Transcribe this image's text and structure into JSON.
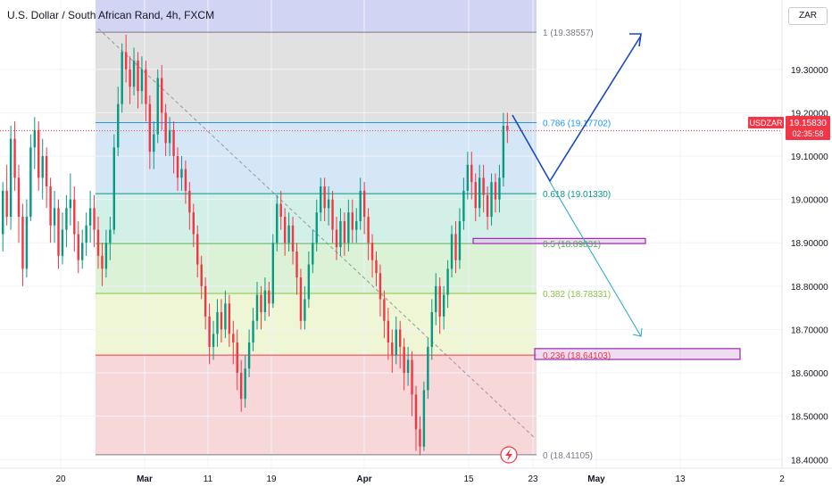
{
  "header": {
    "title": "U.S. Dollar / South African Rand, 4h, FXCM",
    "currency": "ZAR"
  },
  "price_tag": {
    "symbol": "USDZAR",
    "price": "19.15830",
    "countdown": "02:35:58",
    "color": "#f23645"
  },
  "chart_data": {
    "type": "candlestick",
    "symbol": "USDZAR",
    "interval": "4h",
    "source": "FXCM",
    "ylim": [
      18.38,
      19.46
    ],
    "y_ticks": [
      18.4,
      18.5,
      18.6,
      18.7,
      18.8,
      18.9,
      19.0,
      19.1,
      19.2,
      19.3
    ],
    "y_tick_labels": [
      "18.40000",
      "18.50000",
      "18.60000",
      "18.70000",
      "18.80000",
      "18.90000",
      "19.00000",
      "19.10000",
      "19.20000",
      "19.30000"
    ],
    "x_labels": [
      "20",
      "Mar",
      "11",
      "19",
      "Apr",
      "15",
      "23",
      "May",
      "13",
      "2"
    ],
    "last_price": 19.1583,
    "fibonacci": {
      "levels": [
        {
          "ratio": "1",
          "value": 19.38557,
          "label": "1 (19.38557)",
          "color": "#787b86",
          "fill": "#e1e1e1"
        },
        {
          "ratio": "0.786",
          "value": 19.17702,
          "label": "0.786 (19.17702)",
          "color": "#2196f3",
          "fill": "#d5e7f7"
        },
        {
          "ratio": "0.618",
          "value": 19.0133,
          "label": "0.618 (19.01330)",
          "color": "#089981",
          "fill": "#d2f0e8"
        },
        {
          "ratio": "0.5",
          "value": 18.89831,
          "label": "0.5 (18.89831)",
          "color": "#4caf50",
          "fill": "#dcf2d6"
        },
        {
          "ratio": "0.382",
          "value": 18.78331,
          "label": "0.382 (18.78331)",
          "color": "#8bc34a",
          "fill": "#eef6d6"
        },
        {
          "ratio": "0.236",
          "value": 18.64103,
          "label": "0.236 (18.64103)",
          "color": "#f23645",
          "fill": "#f8d7d9"
        },
        {
          "ratio": "0",
          "value": 18.41105,
          "label": "0 (18.41105)",
          "color": "#787b86",
          "fill": "#f8d7d9"
        }
      ],
      "top_band_color": "#d1d4f2"
    },
    "zones": [
      {
        "name": "resistance-zone-0.5",
        "from": 18.8983,
        "to": 18.91
      },
      {
        "name": "support-zone-0.236",
        "from": 18.631,
        "to": 18.656
      }
    ],
    "projections": [
      {
        "name": "bullish-path",
        "color": "#1848c0"
      },
      {
        "name": "bearish-path",
        "color": "#26a6c6"
      }
    ],
    "candles": [
      [
        18.92,
        19.02,
        18.88,
        19.04
      ],
      [
        19.02,
        18.96,
        18.94,
        19.08
      ],
      [
        18.96,
        19.14,
        18.93,
        19.17
      ],
      [
        19.14,
        19.05,
        19.02,
        19.18
      ],
      [
        19.05,
        18.96,
        18.9,
        19.08
      ],
      [
        18.96,
        18.84,
        18.8,
        18.99
      ],
      [
        18.84,
        18.96,
        18.82,
        19.0
      ],
      [
        18.96,
        19.12,
        18.95,
        19.15
      ],
      [
        19.12,
        19.16,
        19.07,
        19.19
      ],
      [
        19.16,
        19.05,
        19.02,
        19.18
      ],
      [
        19.05,
        19.1,
        19.0,
        19.14
      ],
      [
        19.1,
        19.03,
        18.98,
        19.12
      ],
      [
        19.03,
        18.94,
        18.9,
        19.05
      ],
      [
        18.94,
        18.98,
        18.9,
        19.02
      ],
      [
        18.98,
        18.87,
        18.84,
        19.0
      ],
      [
        18.87,
        18.93,
        18.85,
        18.97
      ],
      [
        18.93,
        18.98,
        18.89,
        19.01
      ],
      [
        18.98,
        19.0,
        18.94,
        19.06
      ],
      [
        19.0,
        18.92,
        18.88,
        19.03
      ],
      [
        18.92,
        18.86,
        18.83,
        18.95
      ],
      [
        18.86,
        18.9,
        18.84,
        18.93
      ],
      [
        18.9,
        18.94,
        18.87,
        18.97
      ],
      [
        18.94,
        18.98,
        18.9,
        19.02
      ],
      [
        18.98,
        18.93,
        18.89,
        19.01
      ],
      [
        18.93,
        18.87,
        18.84,
        18.96
      ],
      [
        18.87,
        18.84,
        18.8,
        18.9
      ],
      [
        18.84,
        18.9,
        18.82,
        18.93
      ],
      [
        18.9,
        18.93,
        18.86,
        18.96
      ],
      [
        18.93,
        19.12,
        18.92,
        19.15
      ],
      [
        19.12,
        19.22,
        19.1,
        19.26
      ],
      [
        19.22,
        19.34,
        19.2,
        19.36
      ],
      [
        19.34,
        19.3,
        19.27,
        19.38
      ],
      [
        19.3,
        19.26,
        19.22,
        19.33
      ],
      [
        19.26,
        19.32,
        19.24,
        19.35
      ],
      [
        19.32,
        19.25,
        19.21,
        19.34
      ],
      [
        19.25,
        19.3,
        19.22,
        19.33
      ],
      [
        19.3,
        19.22,
        19.18,
        19.32
      ],
      [
        19.22,
        19.11,
        19.07,
        19.24
      ],
      [
        19.11,
        19.15,
        19.07,
        19.18
      ],
      [
        19.15,
        19.28,
        19.13,
        19.3
      ],
      [
        19.28,
        19.2,
        19.16,
        19.31
      ],
      [
        19.2,
        19.13,
        19.1,
        19.22
      ],
      [
        19.13,
        19.16,
        19.1,
        19.19
      ],
      [
        19.16,
        19.1,
        19.06,
        19.18
      ],
      [
        19.1,
        19.05,
        19.02,
        19.12
      ],
      [
        19.05,
        19.07,
        19.02,
        19.1
      ],
      [
        19.07,
        19.02,
        18.99,
        19.09
      ],
      [
        19.02,
        18.97,
        18.93,
        19.04
      ],
      [
        18.97,
        18.92,
        18.89,
        18.99
      ],
      [
        18.92,
        18.85,
        18.82,
        18.94
      ],
      [
        18.85,
        18.8,
        18.77,
        18.87
      ],
      [
        18.8,
        18.73,
        18.7,
        18.82
      ],
      [
        18.73,
        18.66,
        18.62,
        18.76
      ],
      [
        18.66,
        18.69,
        18.63,
        18.72
      ],
      [
        18.69,
        18.74,
        18.66,
        18.77
      ],
      [
        18.74,
        18.7,
        18.67,
        18.77
      ],
      [
        18.7,
        18.76,
        18.68,
        18.79
      ],
      [
        18.76,
        18.69,
        18.66,
        18.78
      ],
      [
        18.69,
        18.67,
        18.62,
        18.72
      ],
      [
        18.67,
        18.6,
        18.56,
        18.7
      ],
      [
        18.6,
        18.54,
        18.51,
        18.63
      ],
      [
        18.54,
        18.61,
        18.52,
        18.64
      ],
      [
        18.61,
        18.67,
        18.59,
        18.7
      ],
      [
        18.67,
        18.72,
        18.65,
        18.75
      ],
      [
        18.72,
        18.78,
        18.7,
        18.81
      ],
      [
        18.78,
        18.74,
        18.7,
        18.8
      ],
      [
        18.74,
        18.79,
        18.72,
        18.82
      ],
      [
        18.79,
        18.76,
        18.73,
        18.81
      ],
      [
        18.76,
        18.9,
        18.75,
        18.92
      ],
      [
        18.9,
        18.99,
        18.88,
        19.01
      ],
      [
        18.99,
        18.96,
        18.93,
        19.02
      ],
      [
        18.96,
        18.9,
        18.87,
        18.98
      ],
      [
        18.9,
        18.94,
        18.88,
        18.97
      ],
      [
        18.94,
        18.88,
        18.85,
        18.96
      ],
      [
        18.88,
        18.82,
        18.78,
        18.9
      ],
      [
        18.82,
        18.72,
        18.7,
        18.84
      ],
      [
        18.72,
        18.77,
        18.7,
        18.8
      ],
      [
        18.77,
        18.85,
        18.75,
        18.88
      ],
      [
        18.85,
        18.9,
        18.83,
        18.93
      ],
      [
        18.9,
        18.97,
        18.88,
        19.0
      ],
      [
        18.97,
        19.03,
        18.95,
        19.05
      ],
      [
        19.03,
        18.98,
        18.95,
        19.05
      ],
      [
        18.98,
        19.0,
        18.94,
        19.03
      ],
      [
        19.0,
        18.93,
        18.9,
        19.02
      ],
      [
        18.93,
        18.89,
        18.86,
        18.96
      ],
      [
        18.89,
        18.95,
        18.87,
        18.98
      ],
      [
        18.95,
        18.9,
        18.87,
        18.97
      ],
      [
        18.9,
        18.97,
        18.88,
        19.0
      ],
      [
        18.97,
        18.93,
        18.9,
        19.0
      ],
      [
        18.93,
        18.95,
        18.9,
        18.98
      ],
      [
        18.95,
        19.02,
        18.93,
        19.05
      ],
      [
        19.02,
        18.96,
        18.92,
        19.04
      ],
      [
        18.96,
        18.9,
        18.86,
        18.98
      ],
      [
        18.9,
        18.86,
        18.82,
        18.92
      ],
      [
        18.86,
        18.83,
        18.8,
        18.88
      ],
      [
        18.83,
        18.77,
        18.73,
        18.85
      ],
      [
        18.77,
        18.72,
        18.68,
        18.79
      ],
      [
        18.72,
        18.67,
        18.63,
        18.75
      ],
      [
        18.67,
        18.64,
        18.6,
        18.7
      ],
      [
        18.64,
        18.7,
        18.62,
        18.73
      ],
      [
        18.7,
        18.66,
        18.61,
        18.72
      ],
      [
        18.66,
        18.6,
        18.56,
        18.68
      ],
      [
        18.6,
        18.63,
        18.57,
        18.66
      ],
      [
        18.63,
        18.55,
        18.5,
        18.65
      ],
      [
        18.55,
        18.47,
        18.42,
        18.57
      ],
      [
        18.47,
        18.43,
        18.41,
        18.5
      ],
      [
        18.43,
        18.56,
        18.42,
        18.58
      ],
      [
        18.56,
        18.66,
        18.54,
        18.68
      ],
      [
        18.66,
        18.74,
        18.63,
        18.77
      ],
      [
        18.74,
        18.8,
        18.71,
        18.83
      ],
      [
        18.8,
        18.73,
        18.69,
        18.82
      ],
      [
        18.73,
        18.78,
        18.7,
        18.8
      ],
      [
        18.78,
        18.84,
        18.75,
        18.86
      ],
      [
        18.84,
        18.92,
        18.82,
        18.94
      ],
      [
        18.92,
        18.86,
        18.83,
        18.95
      ],
      [
        18.86,
        18.95,
        18.84,
        18.98
      ],
      [
        18.95,
        19.02,
        18.93,
        19.05
      ],
      [
        19.02,
        19.08,
        19.0,
        19.11
      ],
      [
        19.08,
        19.04,
        19.0,
        19.11
      ],
      [
        19.04,
        18.98,
        18.95,
        19.06
      ],
      [
        18.98,
        19.05,
        18.96,
        19.08
      ],
      [
        19.05,
        19.01,
        18.97,
        19.08
      ],
      [
        19.01,
        18.96,
        18.93,
        19.03
      ],
      [
        18.96,
        19.04,
        18.94,
        19.06
      ],
      [
        19.04,
        19.0,
        18.97,
        19.06
      ],
      [
        19.0,
        19.05,
        18.97,
        19.08
      ],
      [
        19.05,
        19.17,
        19.03,
        19.2
      ],
      [
        19.17,
        19.16,
        19.13,
        19.2
      ]
    ]
  }
}
